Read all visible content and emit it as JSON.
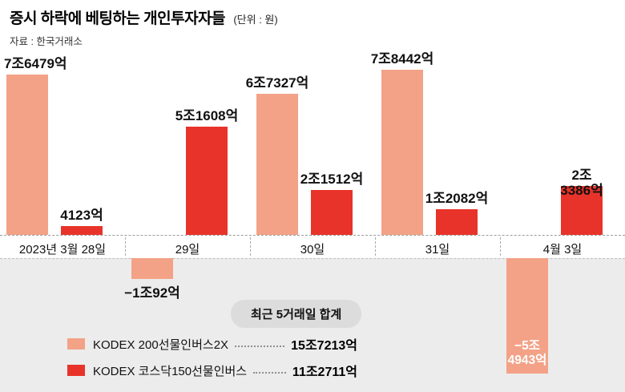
{
  "header": {
    "title": "증시 하락에 베팅하는 개인투자자들",
    "unit": "(단위 : 원)",
    "source": "자료 : 한국거래소"
  },
  "colors": {
    "series1": "#f3a287",
    "series2": "#e8332a",
    "panel": "#ececec",
    "pill": "#dcdcdc"
  },
  "chart_data": {
    "type": "bar",
    "value_unit": "억 원",
    "categories": [
      "2023년 3월 28일",
      "29일",
      "30일",
      "31일",
      "4월 3일"
    ],
    "series": [
      {
        "name": "KODEX 200선물인버스2X",
        "color_key": "series1",
        "values": [
          76479,
          -10092,
          67327,
          78442,
          -54943
        ],
        "labels": [
          "7조6479억",
          "−1조92억",
          "6조7327억",
          "7조8442억",
          "−5조\n4943억"
        ],
        "label_styles": [
          "above",
          "below",
          "above",
          "above",
          "inside"
        ]
      },
      {
        "name": "KODEX 코스닥150선물인버스",
        "color_key": "series2",
        "values": [
          4123,
          51608,
          21512,
          12082,
          23386
        ],
        "labels": [
          "4123억",
          "5조1608억",
          "2조1512억",
          "1조2082억",
          "2조3386억"
        ],
        "label_styles": [
          "above",
          "above",
          "above",
          "above",
          "above"
        ]
      }
    ],
    "ylim_eok": [
      -60000,
      80000
    ],
    "grid": false,
    "legend_position": "bottom-left"
  },
  "summary": {
    "title": "최근 5거래일 합계",
    "items": [
      {
        "name": "KODEX 200선물인버스2X",
        "color_key": "series1",
        "total": "15조7213억"
      },
      {
        "name": "KODEX 코스닥150선물인버스",
        "color_key": "series2",
        "total": "11조2711억"
      }
    ]
  }
}
